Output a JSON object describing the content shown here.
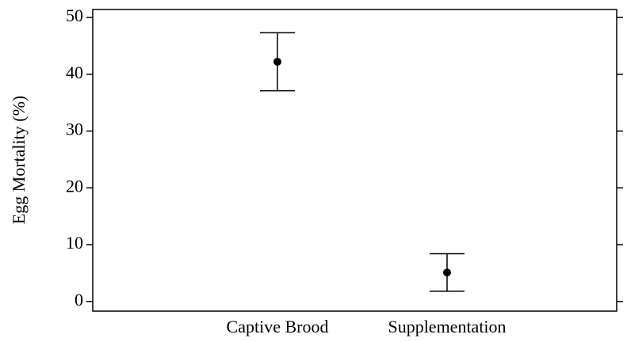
{
  "chart_data": {
    "type": "errorbar",
    "ylabel": "Egg Mortality (%)",
    "categories": [
      "Captive Brood",
      "Supplementation"
    ],
    "values": [
      42.2,
      5.1
    ],
    "errors": [
      5.1,
      3.3
    ],
    "color": "#000000",
    "ylim": [
      -1.7,
      51.4
    ],
    "yticks": [
      0,
      10,
      20,
      30,
      40,
      50
    ]
  }
}
